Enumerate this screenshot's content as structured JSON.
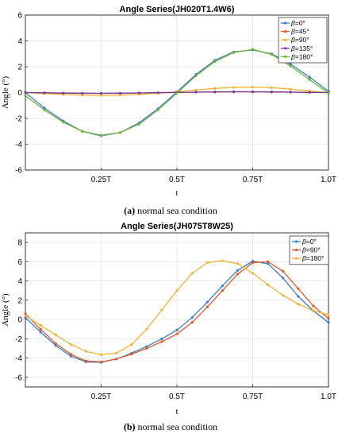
{
  "chart_data": [
    {
      "type": "line",
      "title": "Angle Series(JH020T1.4W6)",
      "xlabel": "t",
      "ylabel": "Angle (°)",
      "xlim": [
        0,
        1
      ],
      "ylim": [
        -6,
        6
      ],
      "xticks": [
        {
          "value": 0.25,
          "label": "0.25T"
        },
        {
          "value": 0.5,
          "label": "0.5T"
        },
        {
          "value": 0.75,
          "label": "0.75T"
        },
        {
          "value": 1.0,
          "label": "1.0T"
        }
      ],
      "yticks": [
        -6,
        -4,
        -2,
        0,
        2,
        4,
        6
      ],
      "legend_position": "top-right",
      "caption_label": "(a)",
      "caption_text": " normal sea condition",
      "series": [
        {
          "name": "β=0°",
          "greek": "β",
          "rest": "=0°",
          "color": "#3a7fc0",
          "x": [
            0,
            0.0625,
            0.125,
            0.1875,
            0.25,
            0.3125,
            0.375,
            0.4375,
            0.5,
            0.5625,
            0.625,
            0.6875,
            0.75,
            0.8125,
            0.875,
            0.9375,
            1.0
          ],
          "y": [
            0,
            -1.2,
            -2.2,
            -3.0,
            -3.35,
            -3.1,
            -2.35,
            -1.25,
            0.05,
            1.4,
            2.5,
            3.15,
            3.3,
            3.0,
            2.2,
            1.2,
            0.1
          ]
        },
        {
          "name": "β=45°",
          "greek": "β",
          "rest": "=45°",
          "color": "#e05a2b",
          "x": [
            0,
            0.0625,
            0.125,
            0.1875,
            0.25,
            0.3125,
            0.375,
            0.4375,
            0.5,
            0.5625,
            0.625,
            0.6875,
            0.75,
            0.8125,
            0.875,
            0.9375,
            1.0
          ],
          "y": [
            0,
            -0.02,
            -0.04,
            -0.06,
            -0.06,
            -0.05,
            -0.03,
            -0.01,
            0.01,
            0.03,
            0.05,
            0.06,
            0.06,
            0.05,
            0.04,
            0.02,
            0
          ]
        },
        {
          "name": "β=90°",
          "greek": "β",
          "rest": "=90°",
          "color": "#f0b43a",
          "x": [
            0,
            0.0625,
            0.125,
            0.1875,
            0.25,
            0.3125,
            0.375,
            0.4375,
            0.5,
            0.5625,
            0.625,
            0.6875,
            0.75,
            0.8125,
            0.875,
            0.9375,
            1.0
          ],
          "y": [
            0,
            -0.08,
            -0.15,
            -0.2,
            -0.22,
            -0.2,
            -0.14,
            -0.05,
            0.06,
            0.2,
            0.32,
            0.4,
            0.42,
            0.38,
            0.27,
            0.12,
            -0.02
          ]
        },
        {
          "name": "β=135°",
          "greek": "β",
          "rest": "=135°",
          "color": "#7a3b9a",
          "x": [
            0,
            0.0625,
            0.125,
            0.1875,
            0.25,
            0.3125,
            0.375,
            0.4375,
            0.5,
            0.5625,
            0.625,
            0.6875,
            0.75,
            0.8125,
            0.875,
            0.9375,
            1.0
          ],
          "y": [
            0,
            -0.02,
            -0.04,
            -0.05,
            -0.06,
            -0.05,
            -0.03,
            -0.01,
            0.01,
            0.03,
            0.05,
            0.06,
            0.06,
            0.05,
            0.03,
            0.01,
            0
          ]
        },
        {
          "name": "β=180°",
          "greek": "β",
          "rest": "=180°",
          "color": "#74b33a",
          "x": [
            0,
            0.0625,
            0.125,
            0.1875,
            0.25,
            0.3125,
            0.375,
            0.4375,
            0.5,
            0.5625,
            0.625,
            0.6875,
            0.75,
            0.8125,
            0.875,
            0.9375,
            1.0
          ],
          "y": [
            -0.25,
            -1.35,
            -2.3,
            -3.0,
            -3.3,
            -3.1,
            -2.45,
            -1.35,
            -0.05,
            1.3,
            2.4,
            3.1,
            3.35,
            2.95,
            2.05,
            1.0,
            -0.05
          ]
        }
      ]
    },
    {
      "type": "line",
      "title": "Angle Series(JH075T8W25)",
      "xlabel": "t",
      "ylabel": "Angle (°)",
      "xlim": [
        0,
        1
      ],
      "ylim": [
        -7,
        9
      ],
      "xticks": [
        {
          "value": 0.25,
          "label": "0.25T"
        },
        {
          "value": 0.5,
          "label": "0.5T"
        },
        {
          "value": 0.75,
          "label": "0.75T"
        },
        {
          "value": 1.0,
          "label": "1.0T"
        }
      ],
      "yticks": [
        -6,
        -4,
        -2,
        0,
        2,
        4,
        6,
        8
      ],
      "legend_position": "top-right",
      "caption_label": "(b)",
      "caption_text": " normal sea condition",
      "series": [
        {
          "name": "β=0°",
          "greek": "β",
          "rest": "=0°",
          "color": "#3a7fc0",
          "x": [
            0,
            0.05,
            0.1,
            0.15,
            0.2,
            0.25,
            0.3,
            0.35,
            0.4,
            0.45,
            0.5,
            0.55,
            0.6,
            0.65,
            0.7,
            0.75,
            0.8,
            0.85,
            0.9,
            0.95,
            1.0
          ],
          "y": [
            0.2,
            -1.3,
            -2.7,
            -3.8,
            -4.4,
            -4.45,
            -4.1,
            -3.5,
            -2.8,
            -2.0,
            -1.1,
            0.2,
            1.8,
            3.5,
            5.1,
            6.05,
            5.8,
            4.3,
            2.4,
            0.9,
            -0.3
          ]
        },
        {
          "name": "β=90°",
          "greek": "β",
          "rest": "=90°",
          "color": "#e05a2b",
          "x": [
            0,
            0.05,
            0.1,
            0.15,
            0.2,
            0.25,
            0.3,
            0.35,
            0.4,
            0.45,
            0.5,
            0.55,
            0.6,
            0.65,
            0.7,
            0.75,
            0.8,
            0.85,
            0.9,
            0.95,
            1.0
          ],
          "y": [
            0.6,
            -1.0,
            -2.5,
            -3.6,
            -4.3,
            -4.4,
            -4.1,
            -3.6,
            -3.0,
            -2.3,
            -1.5,
            -0.3,
            1.3,
            3.0,
            4.7,
            5.9,
            6.0,
            5.0,
            3.2,
            1.4,
            0.1
          ]
        },
        {
          "name": "β=180°",
          "greek": "β",
          "rest": "=180°",
          "color": "#f0b43a",
          "x": [
            0,
            0.05,
            0.1,
            0.15,
            0.2,
            0.25,
            0.3,
            0.35,
            0.4,
            0.45,
            0.5,
            0.55,
            0.6,
            0.65,
            0.7,
            0.75,
            0.8,
            0.85,
            0.9,
            0.95,
            1.0
          ],
          "y": [
            0.4,
            -0.6,
            -1.6,
            -2.6,
            -3.3,
            -3.65,
            -3.5,
            -2.6,
            -1.0,
            1.0,
            3.0,
            4.8,
            5.9,
            6.1,
            5.8,
            4.8,
            3.6,
            2.5,
            1.6,
            0.9,
            0.5
          ]
        }
      ]
    }
  ]
}
